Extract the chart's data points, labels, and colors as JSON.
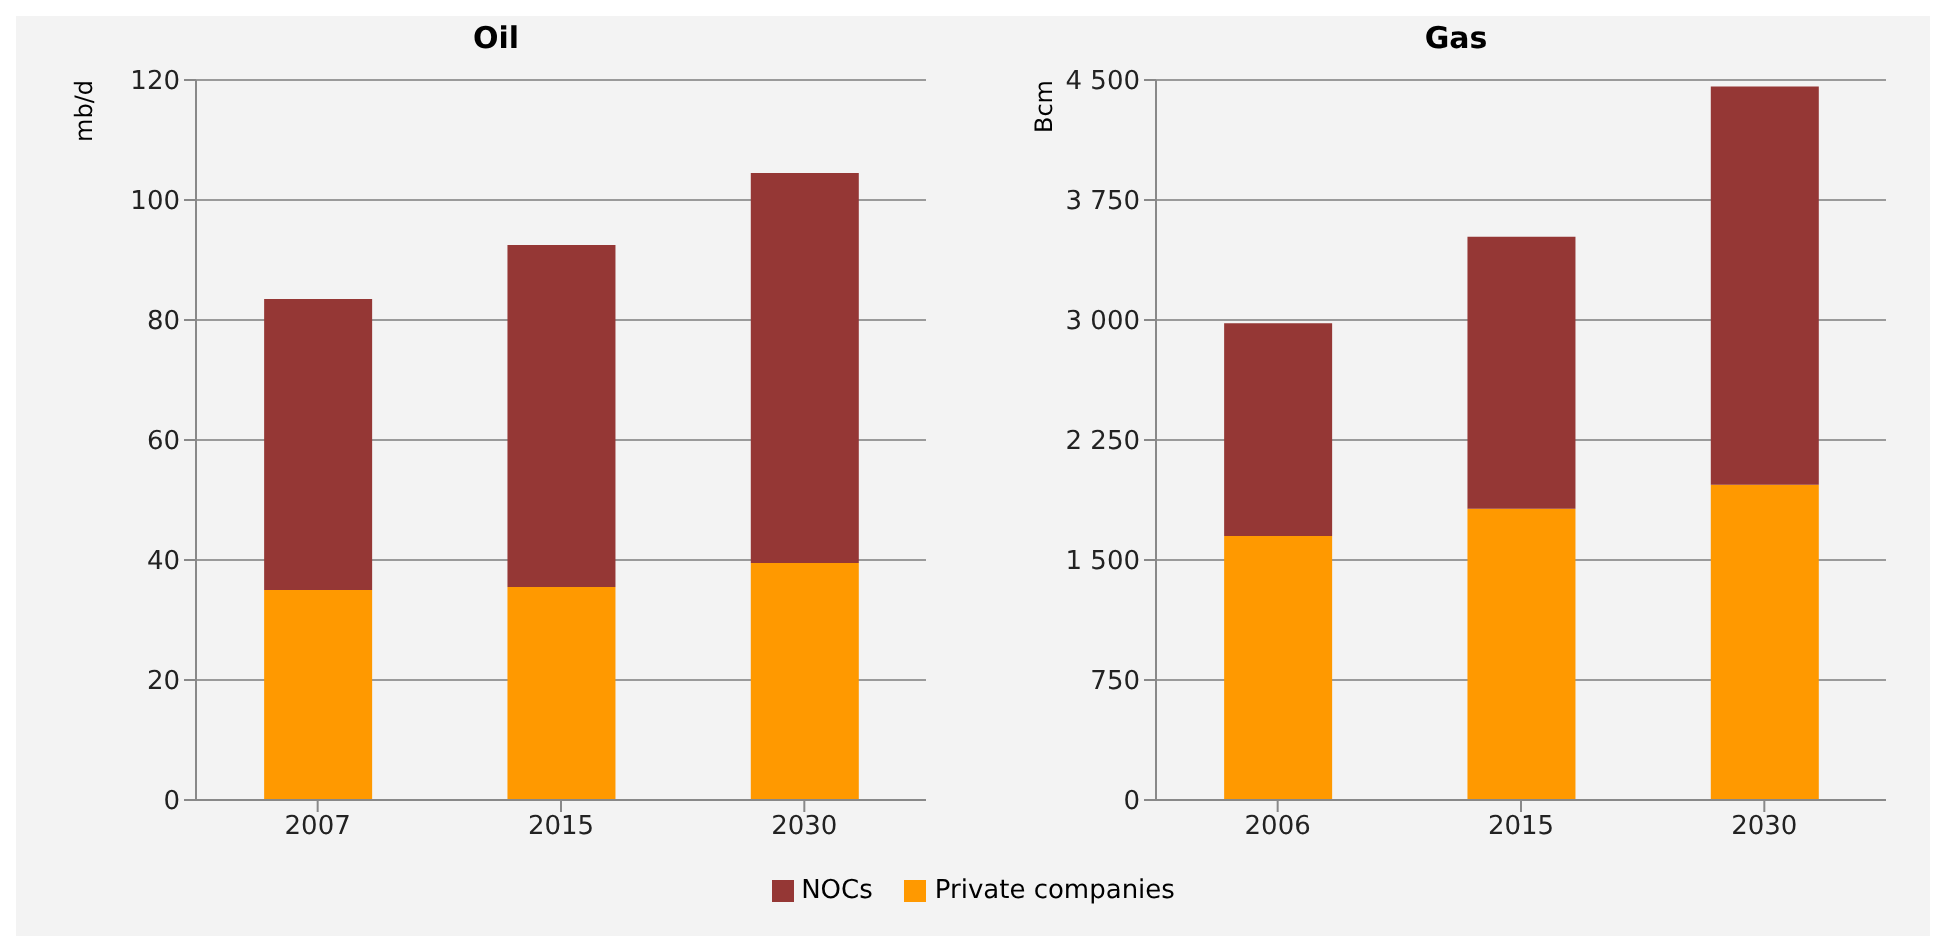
{
  "chart_data": [
    {
      "type": "bar",
      "title": "Oil",
      "ylabel": "mb/d",
      "categories": [
        "2007",
        "2015",
        "2030"
      ],
      "stacked": true,
      "series": [
        {
          "name": "Private companies",
          "color": "#ff9900",
          "values": [
            35,
            35.5,
            39.5
          ]
        },
        {
          "name": "NOCs",
          "color": "#953735",
          "values": [
            48.5,
            57,
            65
          ]
        }
      ],
      "ylim": [
        0,
        120
      ],
      "yticks": [
        0,
        20,
        40,
        60,
        80,
        100,
        120
      ],
      "grid": "y",
      "legend": "bottom"
    },
    {
      "type": "bar",
      "title": "Gas",
      "ylabel": "Bcm",
      "categories": [
        "2006",
        "2015",
        "2030"
      ],
      "stacked": true,
      "series": [
        {
          "color": "#ff9900",
          "values": [
            1650,
            1820,
            1970
          ]
        },
        {
          "color": "#953735",
          "values": [
            1330,
            1700,
            2490
          ]
        }
      ],
      "ylim": [
        0,
        4500
      ],
      "yticks": [
        0,
        {
          "value": 750,
          "label": "750"
        },
        {
          "value": 1500,
          "label": "1 500"
        },
        {
          "value": 2250,
          "label": "2 250"
        },
        {
          "value": 3000,
          "label": "3 000"
        },
        {
          "value": 3750,
          "label": "3 750"
        },
        {
          "value": 4500,
          "label": "4 500"
        }
      ],
      "grid": "y"
    }
  ]
}
